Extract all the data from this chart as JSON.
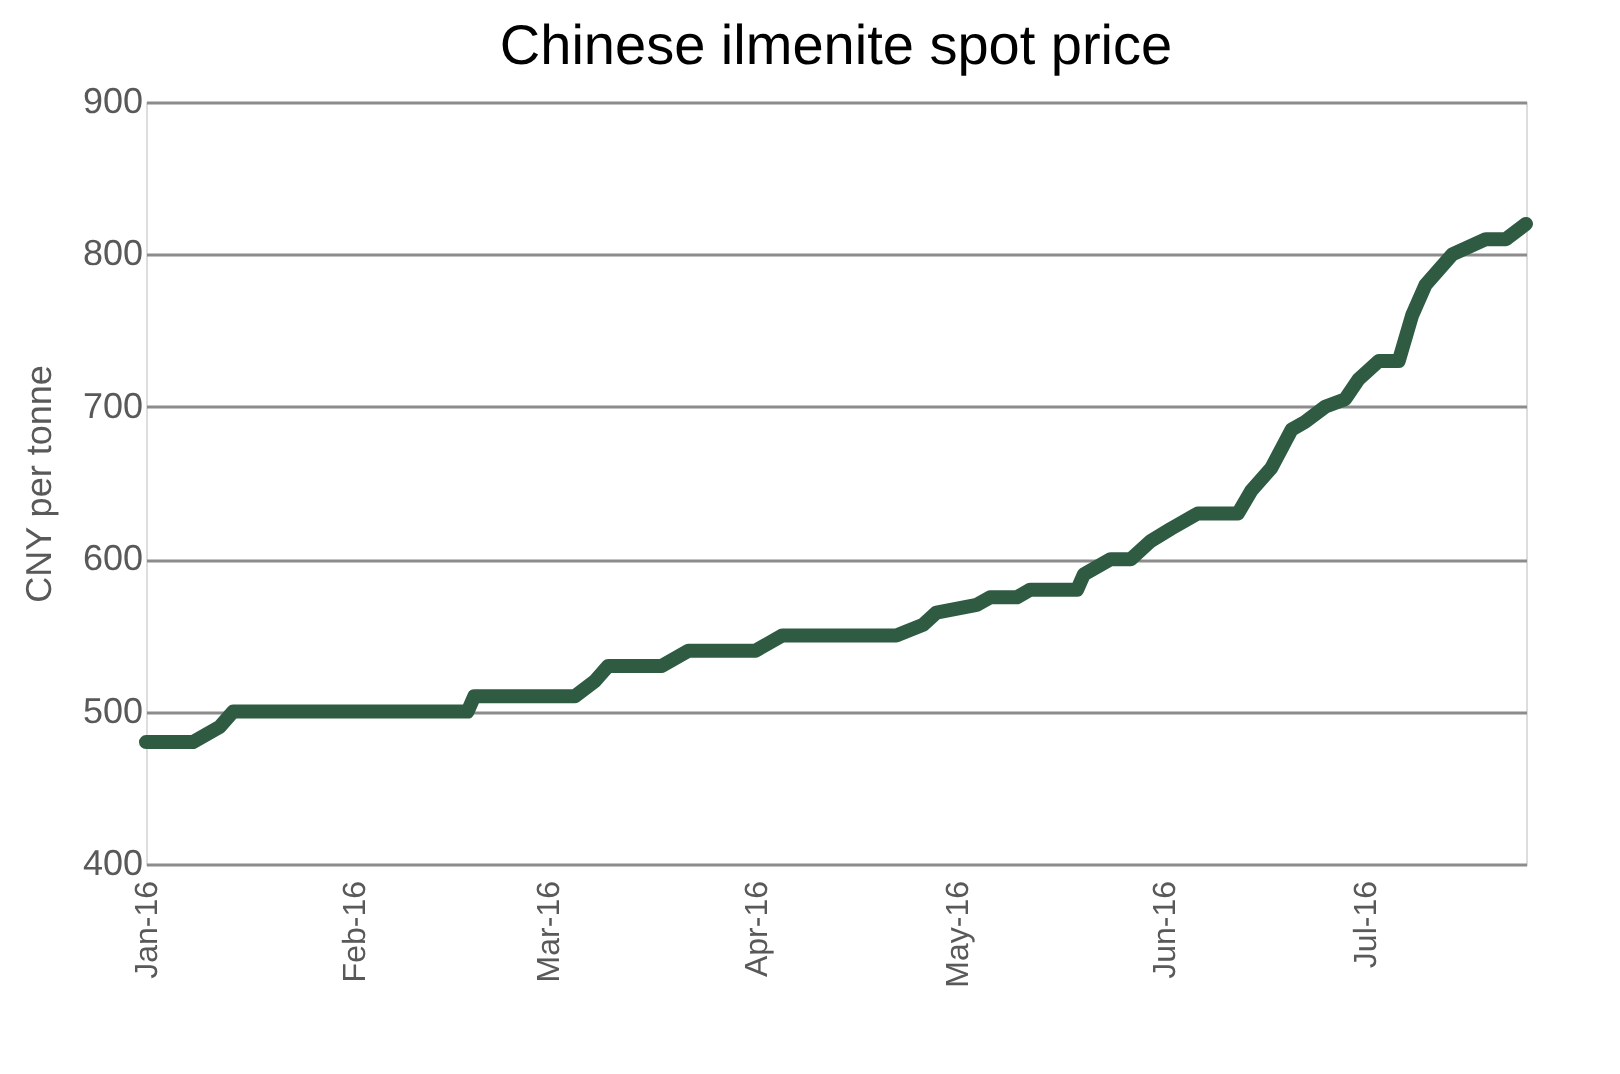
{
  "chart_data": {
    "type": "line",
    "title": "Chinese ilmenite spot price",
    "ylabel": "CNY per tonne",
    "x": [
      "2016-01-01",
      "2016-01-08",
      "2016-01-12",
      "2016-01-14",
      "2016-02-18",
      "2016-02-19",
      "2016-03-05",
      "2016-03-08",
      "2016-03-10",
      "2016-03-18",
      "2016-03-22",
      "2016-04-01",
      "2016-04-05",
      "2016-04-22",
      "2016-04-26",
      "2016-04-28",
      "2016-05-04",
      "2016-05-06",
      "2016-05-10",
      "2016-05-12",
      "2016-05-19",
      "2016-05-20",
      "2016-05-24",
      "2016-05-27",
      "2016-05-30",
      "2016-06-02",
      "2016-06-06",
      "2016-06-12",
      "2016-06-14",
      "2016-06-17",
      "2016-06-20",
      "2016-06-22",
      "2016-06-25",
      "2016-06-28",
      "2016-06-30",
      "2016-07-03",
      "2016-07-06",
      "2016-07-08",
      "2016-07-10",
      "2016-07-12",
      "2016-07-14",
      "2016-07-19",
      "2016-07-22",
      "2016-07-25"
    ],
    "series": [
      {
        "color": "#2e5b42",
        "values": [
          480,
          480,
          490,
          500,
          500,
          510,
          510,
          520,
          530,
          530,
          540,
          540,
          550,
          550,
          557,
          565,
          570,
          575,
          575,
          580,
          580,
          590,
          600,
          600,
          612,
          620,
          630,
          630,
          645,
          660,
          685,
          690,
          700,
          705,
          718,
          730,
          730,
          760,
          780,
          790,
          800,
          810,
          810,
          820
        ]
      }
    ],
    "xlim": [
      "2016-01-01",
      "2016-07-25"
    ],
    "xticks": [
      {
        "value": "2016-01-01",
        "label": "Jan-16"
      },
      {
        "value": "2016-02-01",
        "label": "Feb-16"
      },
      {
        "value": "2016-03-01",
        "label": "Mar-16"
      },
      {
        "value": "2016-04-01",
        "label": "Apr-16"
      },
      {
        "value": "2016-05-01",
        "label": "May-16"
      },
      {
        "value": "2016-06-01",
        "label": "Jun-16"
      },
      {
        "value": "2016-07-01",
        "label": "Jul-16"
      }
    ],
    "ylim": [
      400,
      900
    ],
    "yticks": [
      400,
      500,
      600,
      700,
      800,
      900
    ],
    "grid": "y",
    "line_style": "solid"
  }
}
